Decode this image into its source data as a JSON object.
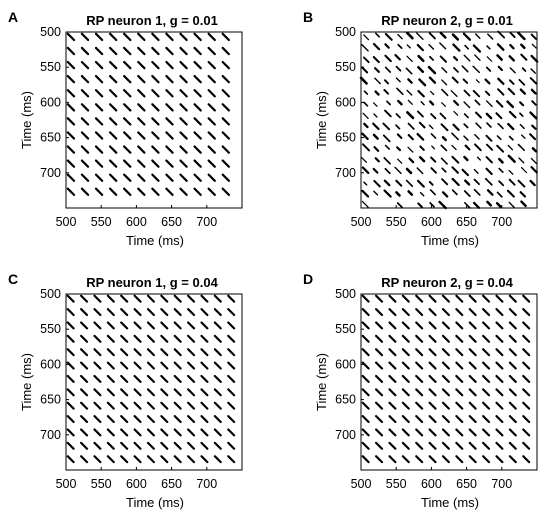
{
  "chart_data": [
    {
      "panel_label": "A",
      "type": "heatmap",
      "title": "RP neuron 1, g = 0.01",
      "xlabel": "Time (ms)",
      "ylabel": "Time (ms)",
      "xticks": [
        "500",
        "550",
        "600",
        "650",
        "700"
      ],
      "yticks": [
        "500",
        "550",
        "600",
        "650",
        "700"
      ],
      "xlim": [
        500,
        750
      ],
      "ylim": [
        500,
        750
      ],
      "y_reversed": true,
      "period_ms": 20,
      "pattern": "regular",
      "stripe_color": "#000000"
    },
    {
      "panel_label": "B",
      "type": "heatmap",
      "title": "RP neuron 2, g = 0.01",
      "xlabel": "Time (ms)",
      "ylabel": "Time (ms)",
      "xticks": [
        "500",
        "550",
        "600",
        "650",
        "700"
      ],
      "yticks": [
        "500",
        "550",
        "600",
        "650",
        "700"
      ],
      "xlim": [
        500,
        750
      ],
      "ylim": [
        500,
        750
      ],
      "y_reversed": true,
      "period_ms": 16,
      "pattern": "irregular",
      "stripe_color": "#000000"
    },
    {
      "panel_label": "C",
      "type": "heatmap",
      "title": "RP neuron 1, g = 0.04",
      "xlabel": "Time (ms)",
      "ylabel": "Time (ms)",
      "xticks": [
        "500",
        "550",
        "600",
        "650",
        "700"
      ],
      "yticks": [
        "500",
        "550",
        "600",
        "650",
        "700"
      ],
      "xlim": [
        500,
        750
      ],
      "ylim": [
        500,
        750
      ],
      "y_reversed": true,
      "period_ms": 19,
      "pattern": "regular",
      "stripe_color": "#000000"
    },
    {
      "panel_label": "D",
      "type": "heatmap",
      "title": "RP neuron 2, g = 0.04",
      "xlabel": "Time (ms)",
      "ylabel": "Time (ms)",
      "xticks": [
        "500",
        "550",
        "600",
        "650",
        "700"
      ],
      "yticks": [
        "500",
        "550",
        "600",
        "650",
        "700"
      ],
      "xlim": [
        500,
        750
      ],
      "ylim": [
        500,
        750
      ],
      "y_reversed": true,
      "period_ms": 19,
      "pattern": "regular",
      "stripe_color": "#000000"
    }
  ]
}
